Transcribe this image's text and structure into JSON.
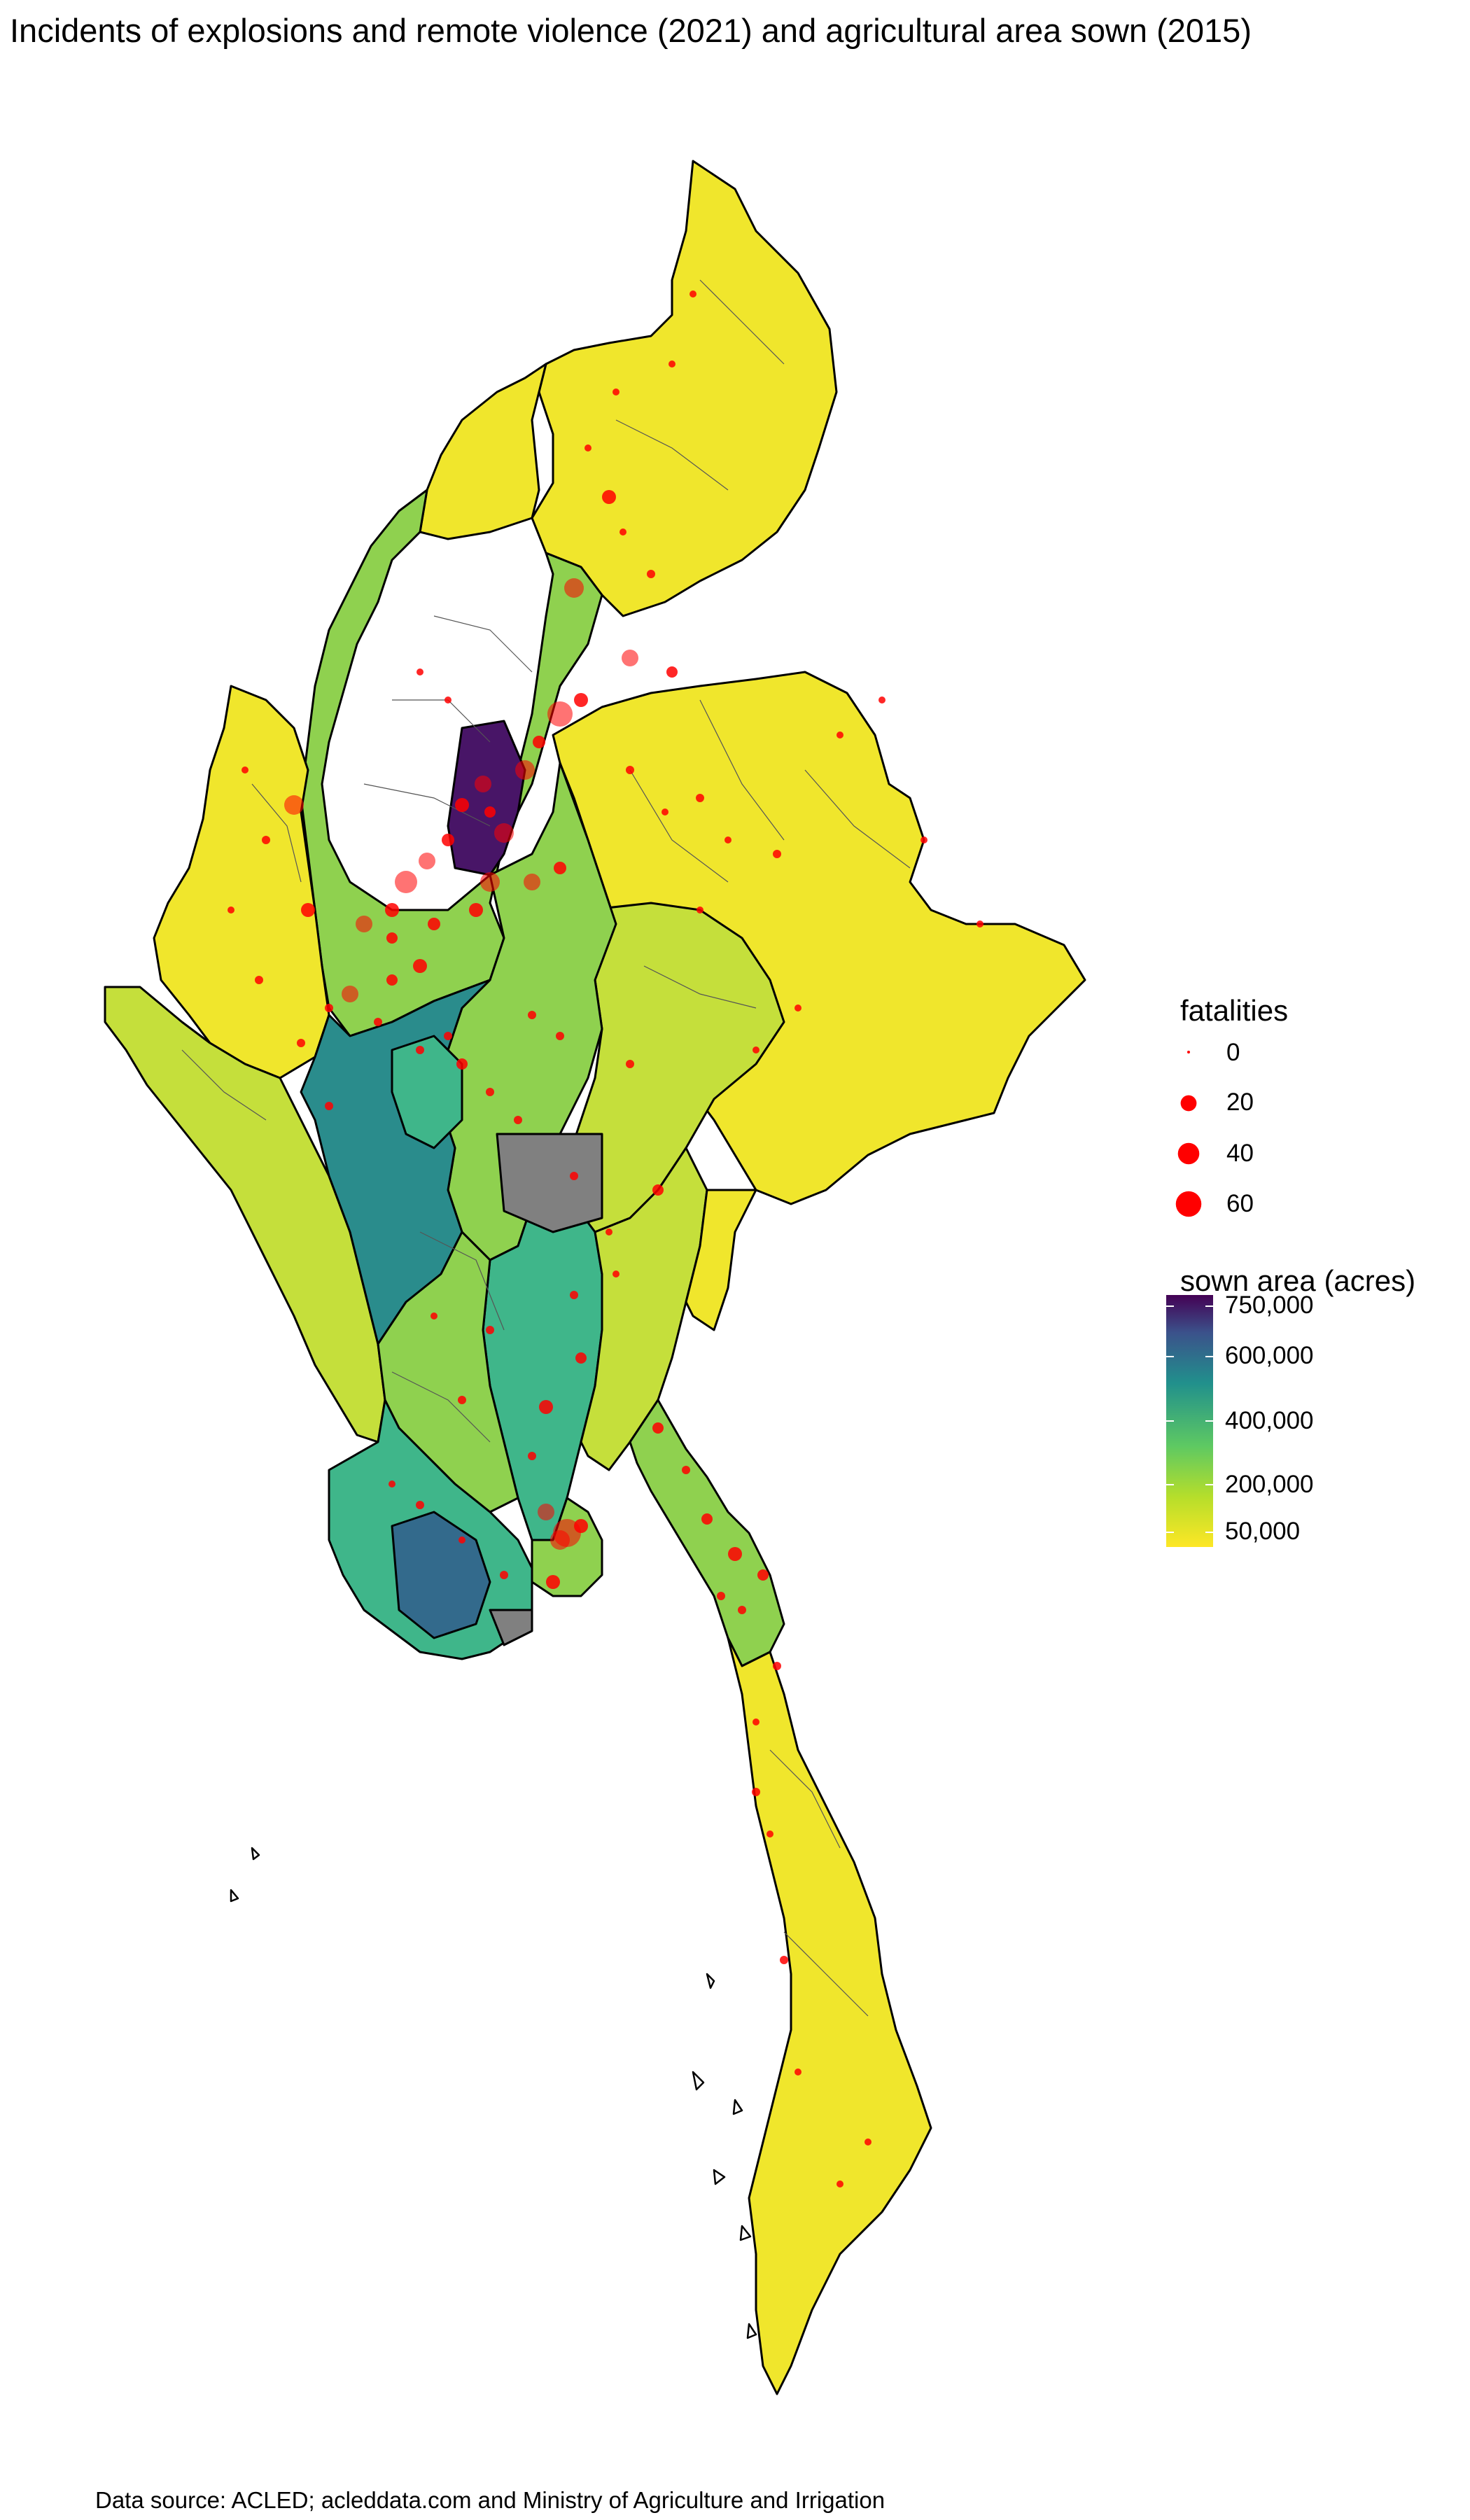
{
  "title": "Incidents of explosions and remote violence (2021) and agricultural area sown (2015)",
  "caption": "Data source: ACLED; acleddata.com and Ministry of Agriculture and Irrigation",
  "legend": {
    "fatalities": {
      "title": "fatalities",
      "color": "#ff0000",
      "items": [
        {
          "label": "0",
          "value": 0
        },
        {
          "label": "20",
          "value": 20
        },
        {
          "label": "40",
          "value": 40
        },
        {
          "label": "60",
          "value": 60
        }
      ]
    },
    "sown_area": {
      "title": "sown area (acres)",
      "colorscale": "viridis (reversed)",
      "ticks": [
        {
          "label": "750,000",
          "value": 750000
        },
        {
          "label": "600,000",
          "value": 600000
        },
        {
          "label": "400,000",
          "value": 400000
        },
        {
          "label": "200,000",
          "value": 200000
        },
        {
          "label": "50,000",
          "value": 50000
        }
      ],
      "na_color": "#808080"
    }
  },
  "colors": {
    "state_border": "#000000",
    "township_border": "#3a3a3a",
    "na": "#808080",
    "points": "#ff0000"
  }
}
